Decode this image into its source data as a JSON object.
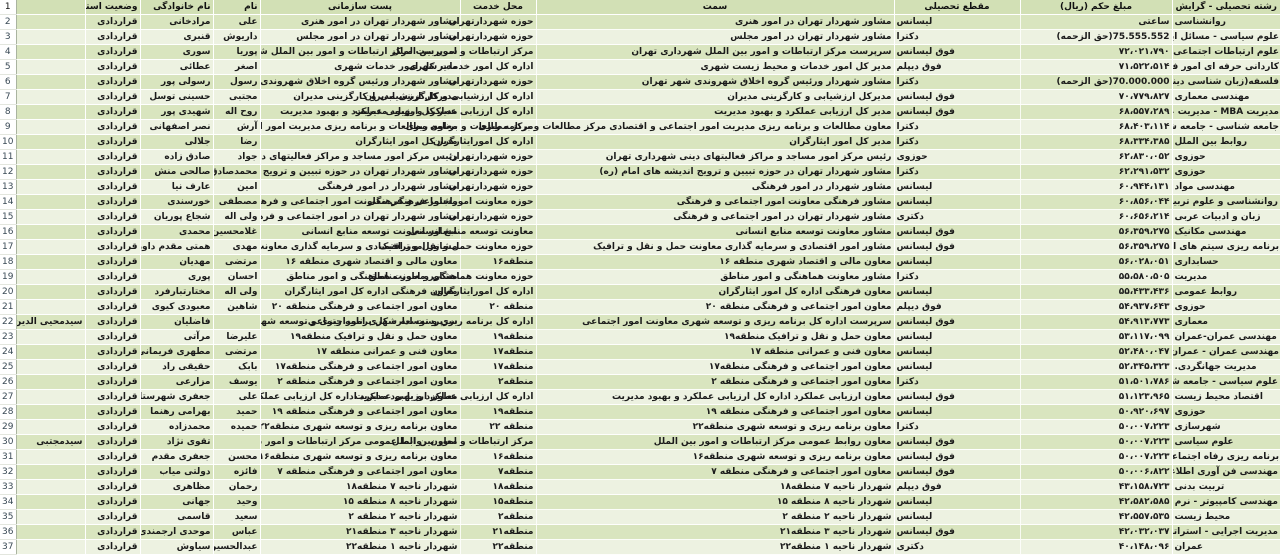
{
  "table": {
    "headers": {
      "row_number_first": "1",
      "name2": "",
      "status": "وضعیت استخدام",
      "last_name": "نام خانوادگی",
      "first_name": "نام",
      "post": "پست سازمانی",
      "location": "محل خدمت",
      "role": "سمت",
      "degree": "مقطع تحصیلی",
      "amount": "مبلغ حکم (ریال)",
      "field": "رشته تحصیلی - گرایش"
    },
    "rows": [
      {
        "num": "2",
        "name2": "",
        "first": "علی",
        "last": "مرادخانی",
        "status": "قراردادی",
        "post": "مشاور شهردار تهران در امور هنری",
        "location": "حوزه شهردارتهران",
        "role": "مشاور شهردار تهران در امور هنری",
        "degree": "لیسانس",
        "amount": "ساعتی",
        "field": "روانشناسی"
      },
      {
        "num": "3",
        "name2": "",
        "first": "داریوش",
        "last": "قنبری",
        "status": "قراردادی",
        "post": "مشاور شهردار تهران در امور مجلس",
        "location": "حوزه شهردارتهران",
        "role": "مشاور شهردار تهران در امور مجلس",
        "degree": "دکترا",
        "amount": "(حق الزحمه)75.555.552",
        "field": "علوم سیاسی - مسائل ایران"
      },
      {
        "num": "4",
        "name2": "",
        "first": "پوریا",
        "last": "سوری",
        "status": "قراردادی",
        "post": "سرپرست مرکز ارتباطات و امور بین الملل شهرداری",
        "location": "مرکز ارتباطات و امور بین الملل",
        "role": "سرپرست مرکز ارتباطات و امور بین الملل شهرداری تهران",
        "degree": "فوق لیسانس",
        "amount": "۷۲،۰۲۱،۷۹۰",
        "field": "علوم ارتباطات اجتماعی"
      },
      {
        "num": "5",
        "name2": "",
        "first": "اصغر",
        "last": "عطائی",
        "status": "قراردادی",
        "post": "مدیر کل امور خدمات شهری",
        "location": "اداره کل امور خدمات شهری",
        "role": "مدیر کل امور خدمات و محیط زیست شهری",
        "degree": "فوق دیپلم",
        "amount": "۷۱،۵۲۲،۵۱۴",
        "field": "کاردانی حرفه ای امور فرهنگی"
      },
      {
        "num": "6",
        "name2": "",
        "first": "رسول",
        "last": "رسولی پور",
        "status": "قراردادی",
        "post": "مشاور شهردار ورئیس گروه اخلاق شهروندی شهر",
        "location": "حوزه شهردارتهران",
        "role": "مشاور شهردار ورئیس گروه اخلاق شهروندی شهر تهران",
        "degree": "دکترا",
        "amount": "(حق الزحمه)70.000.000",
        "field": "فلسفه(زبان شناسی دینی ) - زبانشناسی دینی"
      },
      {
        "num": "7",
        "name2": "",
        "first": "مجتبی",
        "last": "حسینی توسل",
        "status": "قراردادی",
        "post": "مدیرکل ارزشیابی و کارگزینی مدیران",
        "location": "اداره کل ارزشیابی و کارگزینی مدیران",
        "role": "مدیرکل ارزشیابی و کارگزینی مدیران",
        "degree": "فوق لیسانس",
        "amount": "۷۰،۷۷۹،۸۲۷",
        "field": "مهندسی معماری"
      },
      {
        "num": "8",
        "name2": "",
        "first": "روح اله",
        "last": "شهیدی پور",
        "status": "قراردادی",
        "post": "مدیر کل ارزیابی عملکرد و بهبود مدیریت",
        "location": "اداره کل ارزیابی عملکرد و بهبود مدیریت",
        "role": "مدیر کل ارزیابی عملکرد و بهبود مدیریت",
        "degree": "فوق لیسانس",
        "amount": "۶۸،۵۵۷،۲۸۹",
        "field": "مدیریت MBA - مدیریت عمومی"
      },
      {
        "num": "9",
        "name2": "",
        "first": "آرش",
        "last": "نصر اصفهانی",
        "status": "قراردادی",
        "post": "معاون مطالعات و برنامه ریزی مدیریت امور اجتماعی و اقتصادی مرکز مطالعات",
        "location": "مرکز مطالعات و برنامه ریزی",
        "role": "معاون مطالعات و برنامه ریزی مدیریت امور اجتماعی و اقتصادی مرکز مطالعات و برنامه ریزی",
        "degree": "دکترا",
        "amount": "۶۸،۴۰۳،۱۱۴",
        "field": "جامعه شناسی - جامعه شناسی مسائل اجتماعی"
      },
      {
        "num": "10",
        "name2": "",
        "first": "رضا",
        "last": "جلالی",
        "status": "قراردادی",
        "post": "مدیر کل امور ایثارگران",
        "location": "اداره کل امورایثارگران",
        "role": "مدیر کل امور ایثارگران",
        "degree": "دکترا",
        "amount": "۶۸،۳۳۴،۳۸۵",
        "field": "روابط بین الملل"
      },
      {
        "num": "11",
        "name2": "",
        "first": "جواد",
        "last": "صادق زاده",
        "status": "قراردادی",
        "post": "رئیس مرکز امور مساجد و مراکز فعالیتهای دینی شهرداری",
        "location": "حوزه شهردارتهران",
        "role": "رئیس مرکز امور مساجد و مراکز فعالیتهای دینی شهرداری تهران",
        "degree": "حوزوی",
        "amount": "۶۲،۸۳۰،۰۵۲",
        "field": "حوزوی"
      },
      {
        "num": "12",
        "name2": "",
        "first": "محمدصادق",
        "last": "صالحی منش",
        "status": "قراردادی",
        "post": "مشاور شهردار تهران در حوزه تبیین و ترویج اندیشه",
        "location": "حوزه شهردارتهران",
        "role": "مشاور شهردار تهران در حوزه تبیین و ترویج اندیشه های امام (ره)",
        "degree": "دکترا",
        "amount": "۶۲،۲۹۱،۵۳۲",
        "field": "حوزوی"
      },
      {
        "num": "13",
        "name2": "",
        "first": "امین",
        "last": "عارف نیا",
        "status": "قراردادی",
        "post": "مشاور شهردار در امور فرهنگی",
        "location": "حوزه شهردارتهران",
        "role": "مشاور شهردار در امور فرهنگی",
        "degree": "لیسانس",
        "amount": "۶۰،۹۴۴،۱۳۱",
        "field": "مهندسی مواد"
      },
      {
        "num": "14",
        "name2": "",
        "first": "مصطفی",
        "last": "خورسندی",
        "status": "قراردادی",
        "post": "مشاور فرهنگی معاونت امور اجتماعی و فرهنگی",
        "location": "حوزه معاونت اموراجتماعی و فرهنگی",
        "role": "مشاور فرهنگی معاونت امور اجتماعی و فرهنگی",
        "degree": "لیسانس",
        "amount": "۶۰،۸۵۶،۰۴۴",
        "field": "روانشناسی و علوم تربیتی"
      },
      {
        "num": "15",
        "name2": "",
        "first": "ولی اله",
        "last": "شجاع پوریان",
        "status": "قراردادی",
        "post": "مشاور شهردار تهران در امور اجتماعی و فرهنگی",
        "location": "حوزه شهردارتهران",
        "role": "مشاور شهردار تهران در امور اجتماعی و فرهنگی",
        "degree": "دکتری",
        "amount": "۶۰،۶۵۶،۲۱۴",
        "field": "زبان و ادبیات عربی"
      },
      {
        "num": "16",
        "name2": "",
        "first": "غلامحسین",
        "last": "محمدی",
        "status": "قراردادی",
        "post": "مشاور معاونت توسعه منابع انسانی",
        "location": "معاونت توسعه منابع انسانی",
        "role": "مشاور معاونت توسعه منابع انسانی",
        "degree": "فوق لیسانس",
        "amount": "۵۶،۳۵۹،۲۷۵",
        "field": "مهندسی مکانیک"
      },
      {
        "num": "17",
        "name2": "",
        "first": "مهدی",
        "last": "همتی مقدم داورزنی",
        "status": "قراردادی",
        "post": "مشاور امور اقتصادی و سرمایه گذاری معاونت حمل",
        "location": "حوزه معاونت حمل و نقل و ترافیک",
        "role": "مشاور امور اقتصادی و سرمایه گذاری معاونت حمل و نقل و ترافیک",
        "degree": "فوق لیسانس",
        "amount": "۵۶،۳۵۹،۲۷۵",
        "field": "برنامه ریزی سیتم های اقتصادی"
      },
      {
        "num": "18",
        "name2": "",
        "first": "مرتضی",
        "last": "مهدیان",
        "status": "قراردادی",
        "post": "معاون مالی و اقتصاد شهری منطقه ۱۶",
        "location": "منطقه۱۶",
        "role": "معاون مالی و اقتصاد شهری منطقه ۱۶",
        "degree": "لیسانس",
        "amount": "۵۶،۰۲۸،۰۵۱",
        "field": "حسابداری"
      },
      {
        "num": "19",
        "name2": "",
        "first": "احسان",
        "last": "پوری",
        "status": "قراردادی",
        "post": "مشاور معاونت هماهنگی و امور مناطق",
        "location": "حوزه معاونت هماهنگی و امور مناطق",
        "role": "مشاور معاونت هماهنگی و امور مناطق",
        "degree": "دکترا",
        "amount": "۵۵،۵۸۰،۵۰۵",
        "field": "مدیریت"
      },
      {
        "num": "20",
        "name2": "",
        "first": "ولی اله",
        "last": "مختارتبارفرد",
        "status": "قراردادی",
        "post": "معاون فرهنگی اداره کل امور ایثارگران",
        "location": "اداره کل امورایثارگران",
        "role": "معاون فرهنگی اداره کل امور ایثارگران",
        "degree": "لیسانس",
        "amount": "۵۵،۴۳۳،۴۳۶",
        "field": "روابط عمومی"
      },
      {
        "num": "21",
        "name2": "",
        "first": "شاهین",
        "last": "معبودی کیوی",
        "status": "قراردادی",
        "post": "معاون امور اجتماعی و فرهنگی منطقه ۲۰",
        "location": "منطقه ۲۰",
        "role": "معاون امور اجتماعی و فرهنگی منطقه ۲۰",
        "degree": "فوق دیپلم",
        "amount": "۵۴،۹۳۷،۶۴۳",
        "field": "حوزوی"
      },
      {
        "num": "22",
        "name2": "سیدمحیی الدین",
        "first": "",
        "last": "فاضلیان",
        "status": "قراردادی",
        "post": "سرپرست اداره کل برنامه ریزی و توسعه شهری معاونت امور اجتماعی و فرهنگی",
        "location": "اداره کل برنامه ریزی و توسعه شهری اموراجتماعی",
        "role": "سرپرست اداره کل برنامه ریزی و توسعه شهری معاونت امور اجتماعی",
        "degree": "فوق لیسانس",
        "amount": "۵۴،۹۱۳،۷۷۳",
        "field": "معماری"
      },
      {
        "num": "23",
        "name2": "",
        "first": "علیرضا",
        "last": "مرآتی",
        "status": "قراردادی",
        "post": "معاون حمل و نقل و ترافیک منطقه۱۹",
        "location": "منطقه۱۹",
        "role": "معاون حمل و نقل و ترافیک منطقه۱۹",
        "degree": "لیسانس",
        "amount": "۵۳،۱۱۷،۰۹۹",
        "field": "مهندسی عمران-عمران"
      },
      {
        "num": "24",
        "name2": "",
        "first": "مرتضی",
        "last": "مطهری فریمانی",
        "status": "قراردادی",
        "post": "معاون فنی و عمرانی منطقه ۱۷",
        "location": "منطقه۱۷",
        "role": "معاون فنی و عمرانی منطقه ۱۷",
        "degree": "لیسانس",
        "amount": "۵۲،۴۸۰،۰۴۷",
        "field": "مهندسی عمران - عمران"
      },
      {
        "num": "25",
        "name2": "",
        "first": "بابک",
        "last": "حقیقی راد",
        "status": "قراردادی",
        "post": "معاون امور اجتماعی و فرهنگی منطقه۱۷",
        "location": "منطقه۱۷",
        "role": "معاون امور اجتماعی و فرهنگی منطقه۱۷",
        "degree": "لیسانس",
        "amount": "۵۲،۳۴۵،۳۲۳",
        "field": "مدیریت جهانگردی."
      },
      {
        "num": "26",
        "name2": "",
        "first": "یوسف",
        "last": "مزارعی",
        "status": "قراردادی",
        "post": "معاون امور اجتماعی و فرهنگی منطقه ۲",
        "location": "منطقه۲",
        "role": "معاون امور اجتماعی و فرهنگی منطقه ۲",
        "degree": "دکترا",
        "amount": "۵۱،۵۰۱،۷۸۶",
        "field": "علوم سیاسی - جامعه شناسی سیاسی"
      },
      {
        "num": "27",
        "name2": "",
        "first": "علی",
        "last": "جعفری شهرستانی",
        "status": "قراردادی",
        "post": "معاون ارزیابی عملکرد اداره کل ارزیابی عملکرد و بهبود مدیریت",
        "location": "اداره کل ارزیابی عملکرد و بهبود مدیریت",
        "role": "معاون ارزیابی عملکرد اداره کل ارزیابی عملکرد و بهبود مدیریت",
        "degree": "فوق لیسانس",
        "amount": "۵۱،۱۲۳،۹۶۵",
        "field": "اقتصاد محیط زیست"
      },
      {
        "num": "28",
        "name2": "",
        "first": "حمید",
        "last": "بهرامی رهنما",
        "status": "قراردادی",
        "post": "معاون امور اجتماعی و فرهنگی منطقه ۱۹",
        "location": "منطقه۱۹",
        "role": "معاون امور اجتماعی و فرهنگی منطقه ۱۹",
        "degree": "لیسانس",
        "amount": "۵۰،۹۲۰،۶۹۷",
        "field": "حوزوی"
      },
      {
        "num": "29",
        "name2": "",
        "first": "حمیده",
        "last": "محمدزاده",
        "status": "قراردادی",
        "post": "معاون برنامه ریزی و توسعه شهری منطقه۲۲",
        "location": "منطقه ۲۲",
        "role": "معاون برنامه ریزی و توسعه شهری منطقه۲۲",
        "degree": "دکترا",
        "amount": "۵۰،۰۰۷،۲۲۳",
        "field": "شهرسازی"
      },
      {
        "num": "30",
        "name2": "سیدمجتبی",
        "first": "",
        "last": "تقوی نژاد",
        "status": "قراردادی",
        "post": "معاون روابط عمومی مرکز ارتباطات و امور بین الملل",
        "location": "مرکز ارتباطات و امور بین الملل",
        "role": "معاون روابط عمومی مرکز ارتباطات و امور بین الملل",
        "degree": "فوق لیسانس",
        "amount": "۵۰،۰۰۷،۲۲۳",
        "field": "علوم سیاسی"
      },
      {
        "num": "31",
        "name2": "",
        "first": "محسن",
        "last": "جعفری مقدم",
        "status": "قراردادی",
        "post": "معاون برنامه ریزی و توسعه شهری منطقه۱۶",
        "location": "منطقه۱۶",
        "role": "معاون برنامه ریزی و توسعه شهری منطقه۱۶",
        "degree": "فوق لیسانس",
        "amount": "۵۰،۰۰۷،۲۲۳",
        "field": "برنامه ریزی رفاه اجتماعی."
      },
      {
        "num": "32",
        "name2": "",
        "first": "فائزه",
        "last": "دولتی میاب",
        "status": "قراردادی",
        "post": "معاون امور اجتماعی و فرهنگی منطقه ۷",
        "location": "منطقه۷",
        "role": "معاون امور اجتماعی و فرهنگی منطقه ۷",
        "degree": "فوق لیسانس",
        "amount": "۵۰،۰۰۶،۸۲۲",
        "field": "مهندسی فن آوری اطلاعات - تجارت الکترونیک"
      },
      {
        "num": "33",
        "name2": "",
        "first": "رحمان",
        "last": "مظاهری",
        "status": "قراردادی",
        "post": "شهردار ناحیه ۷ منطقه۱۸",
        "location": "منطقه۱۸",
        "role": "شهردار ناحیه ۷ منطقه۱۸",
        "degree": "فوق دیپلم",
        "amount": "۴۳،۱۵۸،۷۲۳",
        "field": "تربیت بدنی"
      },
      {
        "num": "34",
        "name2": "",
        "first": "وحید",
        "last": "جهانی",
        "status": "قراردادی",
        "post": "شهردار ناحیه ۸ منطقه ۱۵",
        "location": "منطقه۱۵",
        "role": "شهردار ناحیه ۸ منطقه ۱۵",
        "degree": "لیسانس",
        "amount": "۴۲،۵۸۲،۵۸۵",
        "field": "مهندسی کامپیوتر - نرم افزار"
      },
      {
        "num": "35",
        "name2": "",
        "first": "سعید",
        "last": "قاسمی",
        "status": "قراردادی",
        "post": "شهردار ناحیه ۲ منطقه ۲",
        "location": "منطقه۲",
        "role": "شهردار ناحیه ۲ منطقه ۲",
        "degree": "لیسانس",
        "amount": "۴۲،۵۵۷،۵۳۵",
        "field": "محیط زیست"
      },
      {
        "num": "36",
        "name2": "",
        "first": "عباس",
        "last": "موحدی ارجمندی",
        "status": "قراردادی",
        "post": "شهردار ناحیه ۳ منطقه۲۱",
        "location": "منطقه۲۱",
        "role": "شهردار ناحیه ۳ منطقه۲۱",
        "degree": "فوق لیسانس",
        "amount": "۴۲،۰۳۲،۰۳۷",
        "field": "مدیریت اجرایی - استراتژیک"
      },
      {
        "num": "37",
        "name2": "",
        "first": "عبدالحسین",
        "last": "سیاوش",
        "status": "قراردادی",
        "post": "شهردار ناحیه ۱ منطقه۲۲",
        "location": "منطقه۲۲",
        "role": "شهردار ناحیه ۱ منطقه۲۲",
        "degree": "دکتری",
        "amount": "۴۰،۱۴۸،۰۹۶",
        "field": "عمران"
      }
    ]
  },
  "colors": {
    "band_dark": "#d9e5bf",
    "band_light": "#edf2e1",
    "header_band": "#d2e0b5",
    "gutter_bg": "#ffffff",
    "text": "#1b1b1b"
  }
}
